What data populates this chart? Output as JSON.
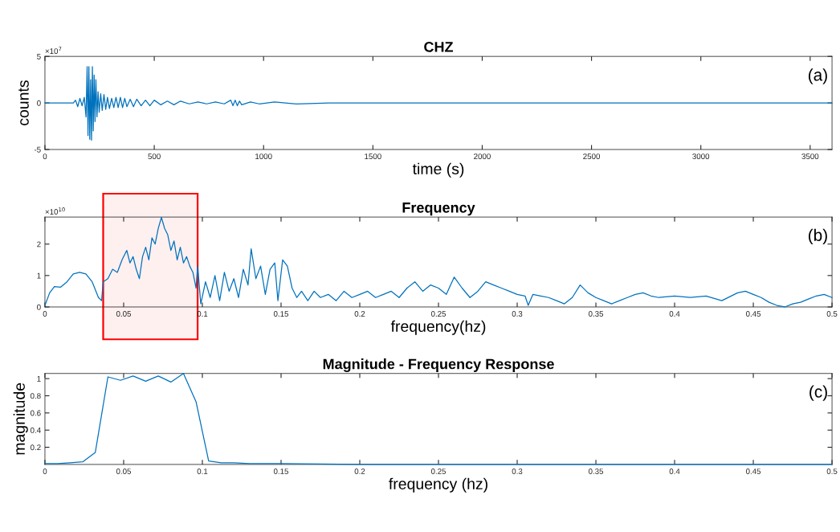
{
  "chart_data": [
    {
      "type": "line",
      "title": "CHZ",
      "xlabel": "time (s)",
      "ylabel": "counts",
      "annotations": [
        "×10$^{7}$",
        "(a)"
      ],
      "xlim": [
        0,
        3600
      ],
      "ylim": [
        -5,
        5
      ],
      "xticks": [
        0,
        500,
        1000,
        1500,
        2000,
        2500,
        3000,
        3500
      ],
      "yticks": [
        -5,
        0,
        5
      ],
      "grid": false,
      "series": [
        {
          "color": "#0072bd",
          "x": [
            0,
            130,
            140,
            150,
            160,
            170,
            180,
            188,
            193,
            197,
            201,
            205,
            209,
            213,
            217,
            221,
            225,
            229,
            233,
            238,
            243,
            248,
            255,
            262,
            270,
            278,
            286,
            295,
            305,
            315,
            325,
            335,
            345,
            355,
            365,
            375,
            390,
            405,
            420,
            440,
            460,
            480,
            500,
            530,
            560,
            590,
            620,
            660,
            700,
            740,
            780,
            820,
            850,
            860,
            870,
            880,
            890,
            900,
            940,
            980,
            1050,
            1150,
            1300,
            1500,
            1650,
            1800,
            2000,
            2300,
            2600,
            3000,
            3600
          ],
          "values": [
            0,
            0,
            0.3,
            -0.4,
            0.5,
            -0.3,
            0.6,
            -1.5,
            3.9,
            -3.5,
            3.9,
            -3.9,
            2.5,
            -4.0,
            3.9,
            -3.0,
            3.0,
            -2.0,
            2.5,
            -1.5,
            1.2,
            -1.0,
            1.0,
            -0.8,
            0.9,
            -0.7,
            0.6,
            -0.6,
            0.5,
            -0.5,
            0.6,
            -0.5,
            0.6,
            -0.5,
            0.5,
            -0.4,
            0.4,
            -0.4,
            0.4,
            -0.3,
            0.3,
            -0.3,
            0.3,
            -0.2,
            0.2,
            -0.2,
            0.2,
            -0.1,
            0.1,
            -0.1,
            0.1,
            -0.1,
            0.3,
            -0.3,
            0.3,
            -0.3,
            0.2,
            -0.2,
            0.1,
            -0.1,
            0.1,
            -0.1,
            0,
            0,
            0,
            0,
            0,
            0,
            0,
            0,
            0
          ]
        }
      ]
    },
    {
      "type": "line",
      "title": "Frequency",
      "xlabel": "frequency(hz)",
      "annotations": [
        "×10$^{10}$",
        "(b)"
      ],
      "xlim": [
        0,
        0.5
      ],
      "ylim": [
        0,
        2.86
      ],
      "xticks": [
        0,
        0.05,
        0.1,
        0.15,
        0.2,
        0.25,
        0.3,
        0.35,
        0.4,
        0.45,
        0.5
      ],
      "yticks": [
        0,
        1,
        2
      ],
      "grid": false,
      "bands": [
        {
          "axis": "x",
          "from": 0.037,
          "to": 0.097,
          "color": "#ff0000"
        }
      ],
      "series": [
        {
          "color": "#0072bd",
          "x": [
            0,
            0.003,
            0.006,
            0.01,
            0.014,
            0.018,
            0.022,
            0.026,
            0.03,
            0.034,
            0.036,
            0.037,
            0.04,
            0.043,
            0.046,
            0.049,
            0.052,
            0.054,
            0.056,
            0.058,
            0.06,
            0.062,
            0.064,
            0.066,
            0.068,
            0.07,
            0.072,
            0.074,
            0.076,
            0.078,
            0.08,
            0.082,
            0.084,
            0.086,
            0.088,
            0.09,
            0.092,
            0.094,
            0.096,
            0.097,
            0.099,
            0.102,
            0.105,
            0.108,
            0.111,
            0.114,
            0.117,
            0.12,
            0.123,
            0.126,
            0.129,
            0.131,
            0.134,
            0.137,
            0.14,
            0.143,
            0.146,
            0.148,
            0.151,
            0.154,
            0.157,
            0.16,
            0.163,
            0.167,
            0.171,
            0.175,
            0.18,
            0.185,
            0.19,
            0.195,
            0.2,
            0.205,
            0.21,
            0.215,
            0.22,
            0.225,
            0.23,
            0.235,
            0.24,
            0.245,
            0.25,
            0.255,
            0.26,
            0.265,
            0.27,
            0.275,
            0.28,
            0.285,
            0.29,
            0.295,
            0.3,
            0.305,
            0.307,
            0.31,
            0.315,
            0.32,
            0.325,
            0.33,
            0.335,
            0.34,
            0.345,
            0.35,
            0.355,
            0.36,
            0.365,
            0.37,
            0.375,
            0.38,
            0.385,
            0.39,
            0.4,
            0.41,
            0.42,
            0.43,
            0.44,
            0.445,
            0.45,
            0.455,
            0.46,
            0.465,
            0.47,
            0.475,
            0.48,
            0.485,
            0.49,
            0.495,
            0.5
          ],
          "values": [
            0.05,
            0.45,
            0.65,
            0.63,
            0.8,
            1.05,
            1.1,
            1.05,
            0.8,
            0.3,
            0.2,
            0.8,
            0.9,
            1.2,
            1.1,
            1.5,
            1.8,
            1.4,
            1.6,
            1.2,
            0.9,
            1.6,
            1.9,
            1.5,
            2.2,
            2.0,
            2.5,
            2.85,
            2.5,
            2.3,
            1.8,
            2.1,
            1.5,
            1.9,
            1.4,
            1.6,
            1.3,
            1.1,
            0.6,
            1.3,
            0.1,
            0.8,
            0.3,
            1.0,
            0.2,
            1.1,
            0.5,
            0.9,
            0.3,
            1.2,
            0.7,
            1.85,
            0.9,
            1.3,
            0.4,
            1.2,
            1.4,
            0.2,
            1.5,
            1.3,
            0.6,
            0.3,
            0.5,
            0.2,
            0.5,
            0.3,
            0.4,
            0.2,
            0.5,
            0.3,
            0.4,
            0.5,
            0.3,
            0.4,
            0.5,
            0.3,
            0.6,
            0.8,
            0.5,
            0.7,
            0.6,
            0.4,
            0.95,
            0.6,
            0.3,
            0.5,
            0.8,
            0.7,
            0.6,
            0.5,
            0.4,
            0.35,
            0.05,
            0.4,
            0.35,
            0.3,
            0.2,
            0.1,
            0.3,
            0.7,
            0.45,
            0.3,
            0.2,
            0.1,
            0.2,
            0.3,
            0.4,
            0.45,
            0.35,
            0.3,
            0.35,
            0.3,
            0.35,
            0.2,
            0.45,
            0.5,
            0.4,
            0.3,
            0.15,
            0.05,
            0.0,
            0.1,
            0.15,
            0.25,
            0.35,
            0.4,
            0.3
          ]
        }
      ]
    },
    {
      "type": "line",
      "title": "Magnitude - Frequency Response",
      "xlabel": "frequency (hz)",
      "ylabel": "magnitude",
      "annotations": [
        "(c)"
      ],
      "xlim": [
        0,
        0.5
      ],
      "ylim": [
        0,
        1.06
      ],
      "xticks": [
        0,
        0.05,
        0.1,
        0.15,
        0.2,
        0.25,
        0.3,
        0.35,
        0.4,
        0.45,
        0.5
      ],
      "yticks": [
        0.2,
        0.4,
        0.6,
        0.8,
        1
      ],
      "grid": false,
      "series": [
        {
          "color": "#0072bd",
          "x": [
            0,
            0.008,
            0.016,
            0.024,
            0.032,
            0.04,
            0.048,
            0.056,
            0.064,
            0.072,
            0.08,
            0.088,
            0.096,
            0.104,
            0.112,
            0.12,
            0.13,
            0.15,
            0.2,
            0.3,
            0.4,
            0.5
          ],
          "values": [
            0.01,
            0.01,
            0.02,
            0.03,
            0.14,
            1.02,
            0.98,
            1.03,
            0.97,
            1.03,
            0.96,
            1.06,
            0.73,
            0.04,
            0.02,
            0.02,
            0.01,
            0.01,
            0,
            0,
            0,
            0
          ]
        }
      ]
    }
  ]
}
